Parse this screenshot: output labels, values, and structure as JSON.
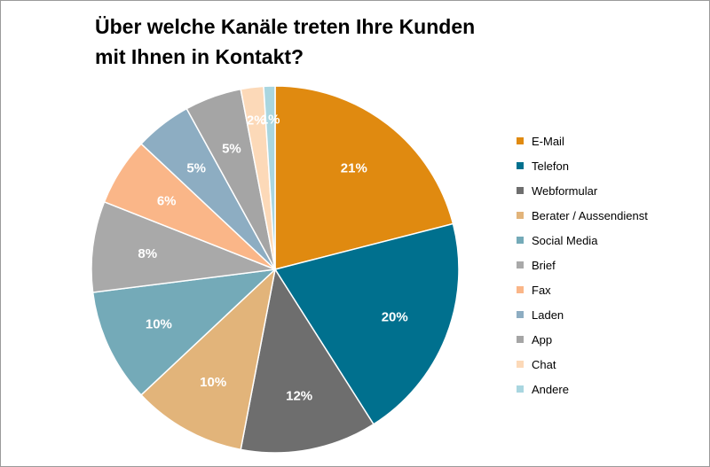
{
  "chart_data": {
    "type": "pie",
    "title_line1": "Über welche Kanäle treten Ihre Kunden",
    "title_line2": "mit Ihnen in Kontakt?",
    "legend_position": "right",
    "slices": [
      {
        "name": "E-Mail",
        "value": 21,
        "label": "21%",
        "color": "#E08A10"
      },
      {
        "name": "Telefon",
        "value": 20,
        "label": "20%",
        "color": "#00708E"
      },
      {
        "name": "Webformular",
        "value": 12,
        "label": "12%",
        "color": "#6E6E6E"
      },
      {
        "name": "Berater / Aussendienst",
        "value": 10,
        "label": "10%",
        "color": "#E2B47A"
      },
      {
        "name": "Social Media",
        "value": 10,
        "label": "10%",
        "color": "#74AAB8"
      },
      {
        "name": "Brief",
        "value": 8,
        "label": "8%",
        "color": "#A9A9A9"
      },
      {
        "name": "Fax",
        "value": 6,
        "label": "6%",
        "color": "#FAB688"
      },
      {
        "name": "Laden",
        "value": 5,
        "label": "5%",
        "color": "#8DADC2"
      },
      {
        "name": "App",
        "value": 5,
        "label": "5%",
        "color": "#A5A5A5"
      },
      {
        "name": "Chat",
        "value": 2,
        "label": "2%",
        "color": "#FCD9B8"
      },
      {
        "name": "Andere",
        "value": 1,
        "label": "1%",
        "color": "#A9D6E0"
      }
    ]
  }
}
